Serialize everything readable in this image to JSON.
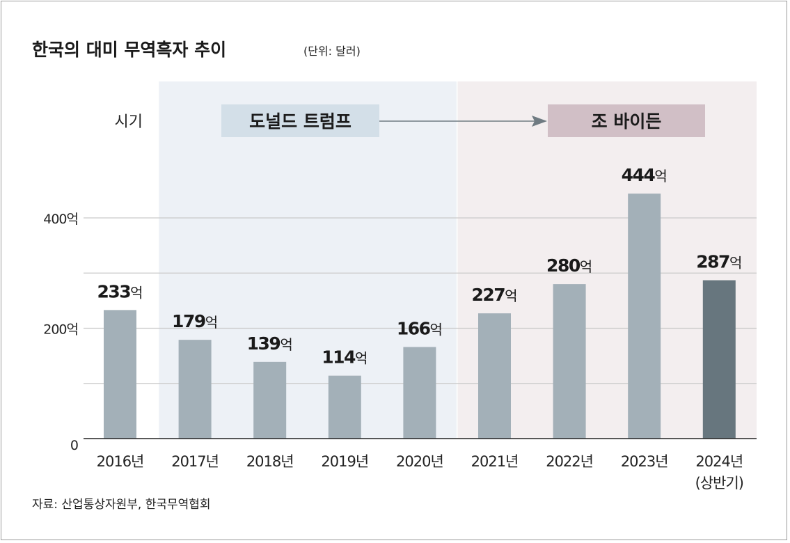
{
  "chart_data": {
    "type": "bar",
    "title": "한국의 대미 무역흑자 추이",
    "unit_note": "(단위: 달러)",
    "categories": [
      "2016년",
      "2017년",
      "2018년",
      "2019년",
      "2020년",
      "2021년",
      "2022년",
      "2023년",
      "2024년"
    ],
    "category_sublabels": [
      "",
      "",
      "",
      "",
      "",
      "",
      "",
      "",
      "(상반기)"
    ],
    "values": [
      233,
      179,
      139,
      114,
      166,
      227,
      280,
      444,
      287
    ],
    "data_labels": [
      {
        "num": "233",
        "unit": "억"
      },
      {
        "num": "179",
        "unit": "억"
      },
      {
        "num": "139",
        "unit": "억"
      },
      {
        "num": "114",
        "unit": "억"
      },
      {
        "num": "166",
        "unit": "억"
      },
      {
        "num": "227",
        "unit": "억"
      },
      {
        "num": "280",
        "unit": "억"
      },
      {
        "num": "444",
        "unit": "억"
      },
      {
        "num": "287",
        "unit": "억"
      }
    ],
    "ylim": [
      0,
      400
    ],
    "yticks": [
      {
        "value": 0,
        "label": "0"
      },
      {
        "value": 200,
        "label": "200억"
      },
      {
        "value": 400,
        "label": "400억"
      }
    ],
    "gridlines": [
      100,
      200,
      300,
      400
    ],
    "grid": true,
    "period_label": "시기",
    "periods": [
      {
        "name": "도널드 트럼프",
        "from": 1,
        "to": 4,
        "band_color": "#edf1f6",
        "box_color": "#d3dfe8"
      },
      {
        "name": "조 바이든",
        "from": 5,
        "to": 8,
        "band_color": "#f3eeef",
        "box_color": "#d1bfc6"
      }
    ],
    "bar_color": "#a3b0b8",
    "highlight_bar_color": "#67767e",
    "highlight_index": 8,
    "source": "자료: 산업통상자원부, 한국무역협회"
  }
}
